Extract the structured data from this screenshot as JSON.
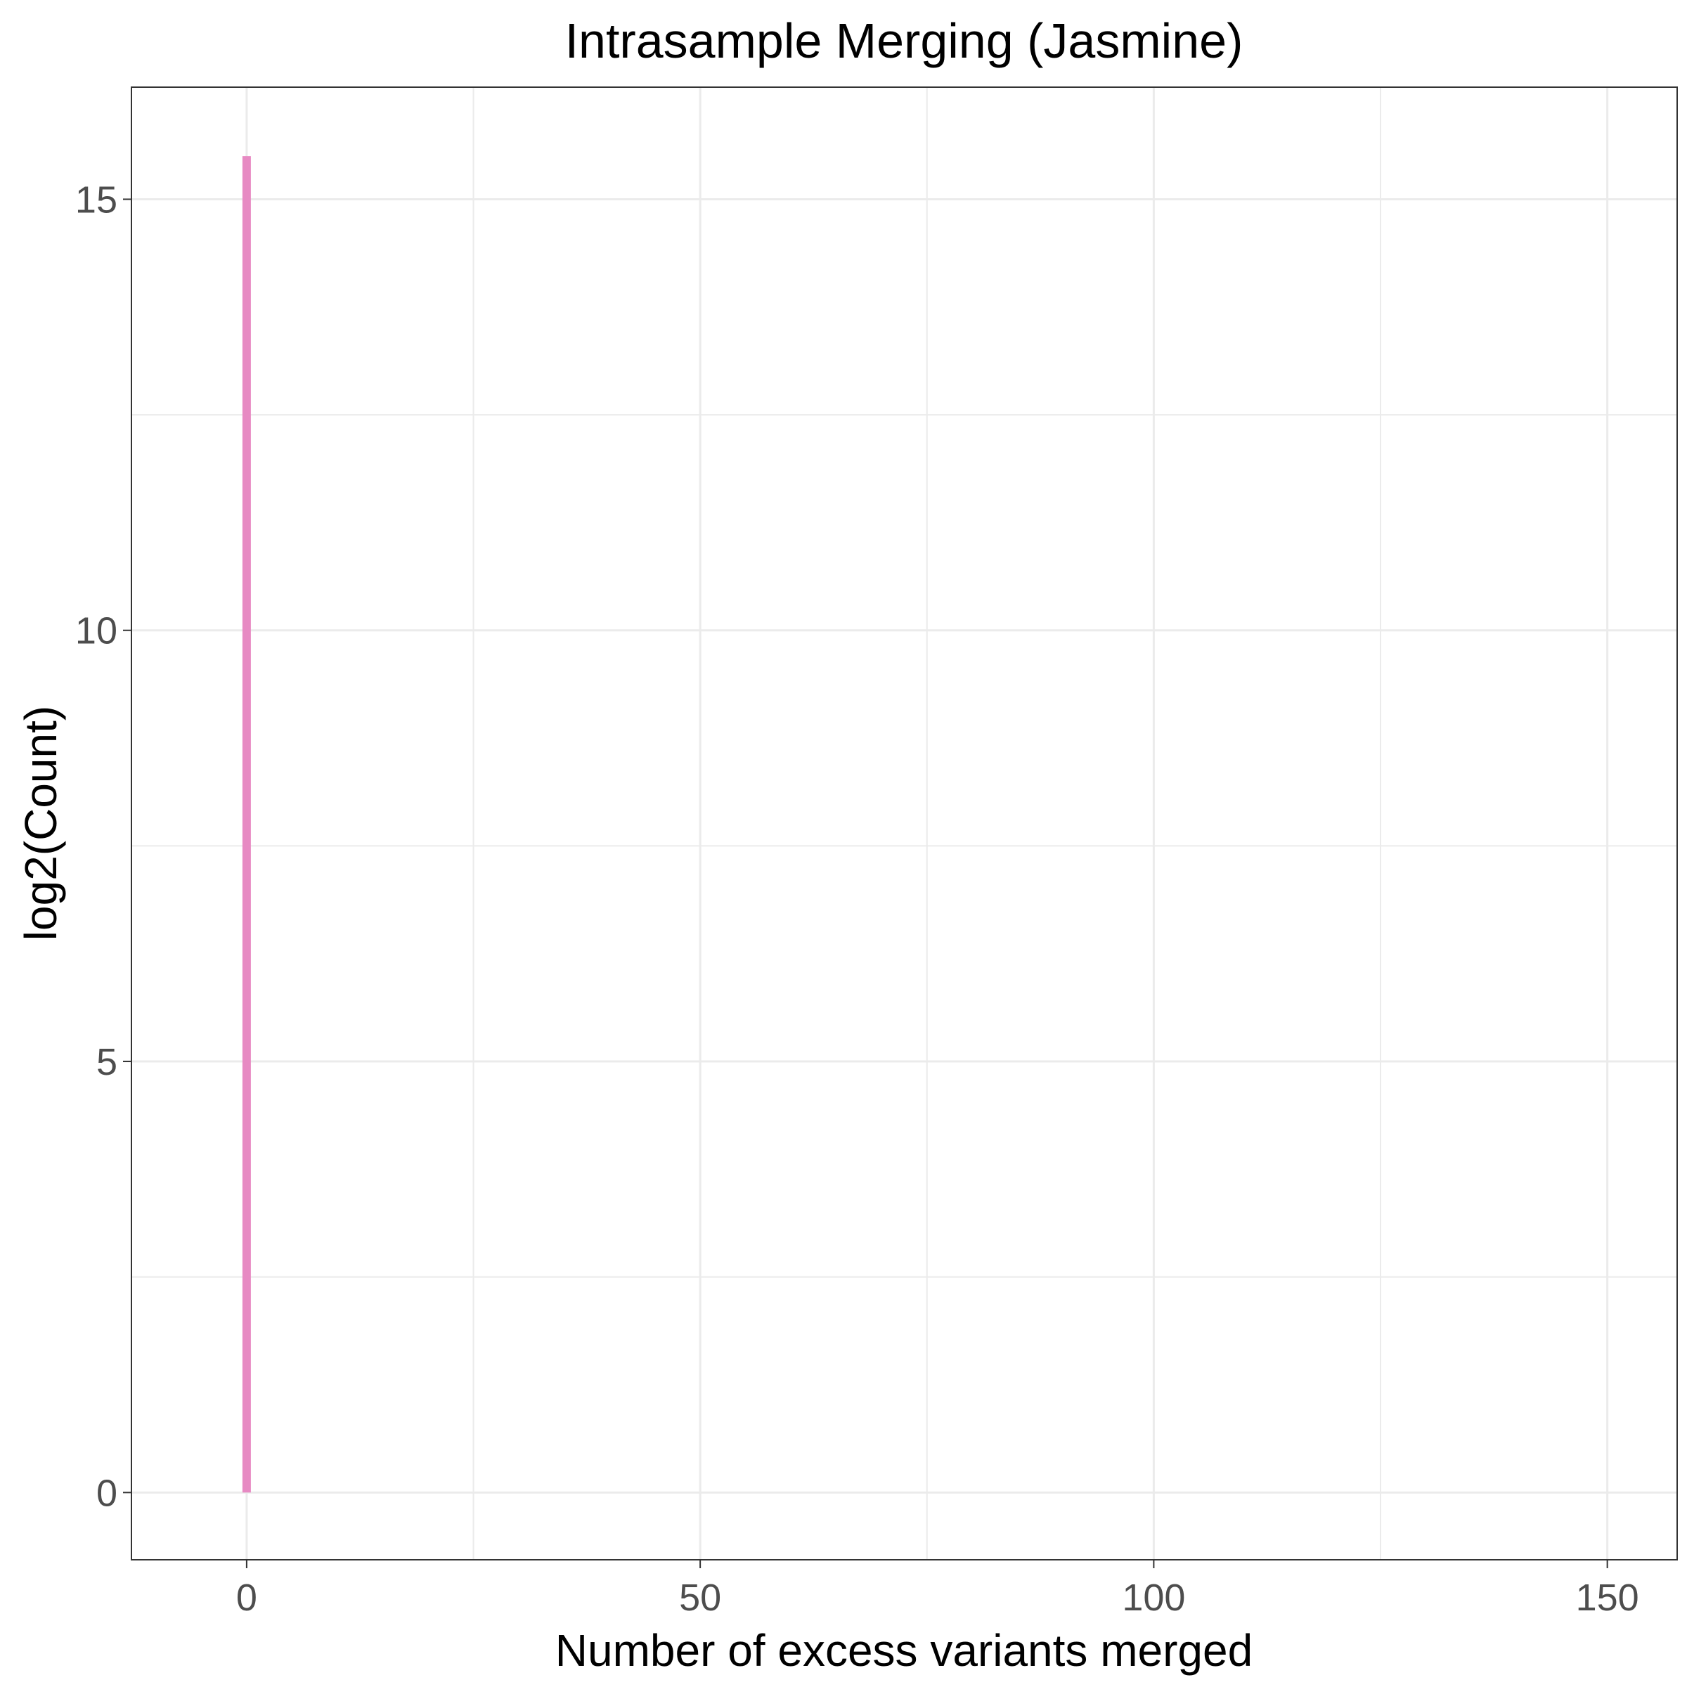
{
  "chart_data": {
    "type": "bar",
    "title": "Intrasample Merging (Jasmine)",
    "xlabel": "Number of excess variants merged",
    "ylabel": "log2(Count)",
    "x_ticks": [
      0,
      50,
      100,
      150
    ],
    "y_ticks": [
      0,
      5,
      10,
      15
    ],
    "xlim": [
      -12.7,
      157.7
    ],
    "ylim": [
      -0.78,
      16.3
    ],
    "grid": true,
    "legend": "none",
    "bar_color": "#e78ac3",
    "x": [
      0
    ],
    "values": [
      15.5
    ]
  }
}
